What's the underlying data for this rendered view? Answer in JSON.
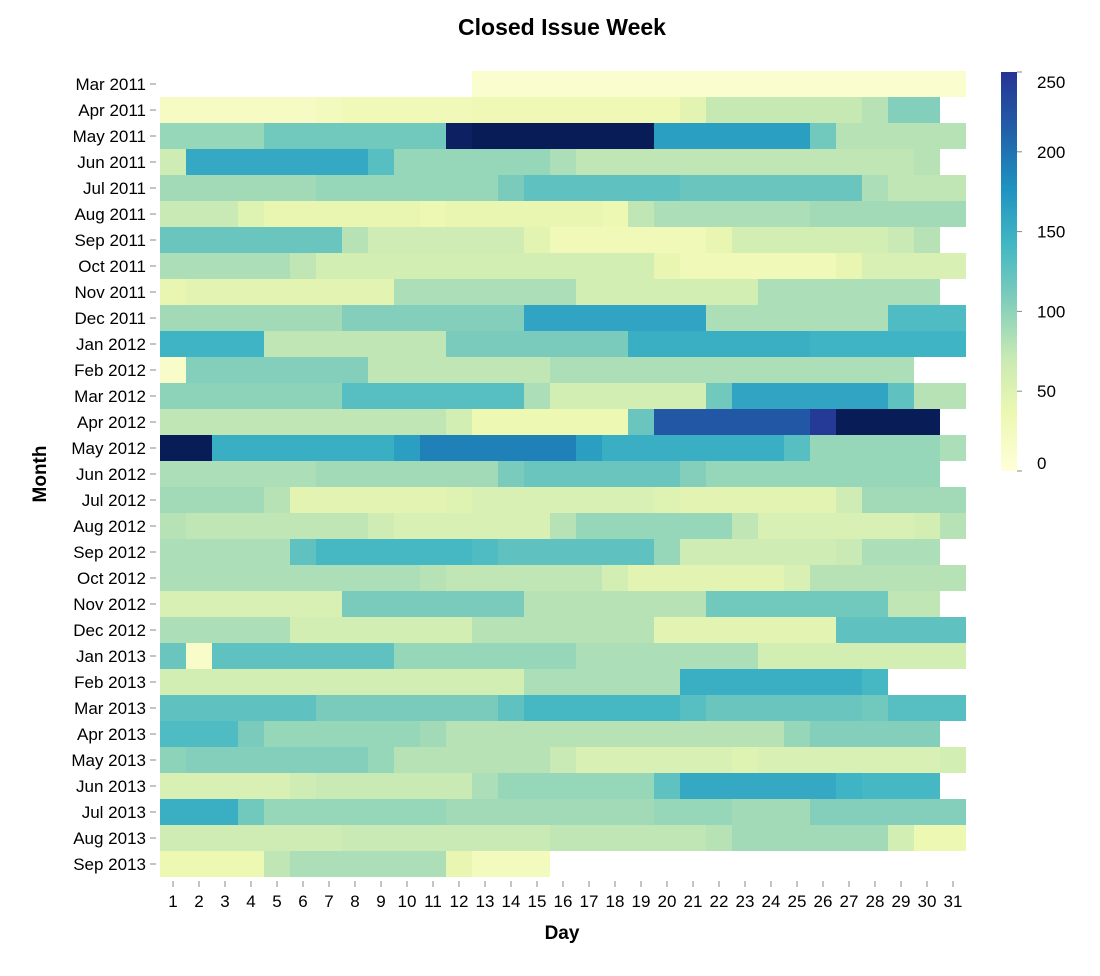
{
  "chart_data": {
    "type": "heatmap",
    "title": "Closed Issue Week",
    "xlabel": "Day",
    "ylabel": "Month",
    "x_categories": [
      "1",
      "2",
      "3",
      "4",
      "5",
      "6",
      "7",
      "8",
      "9",
      "10",
      "11",
      "12",
      "13",
      "14",
      "15",
      "16",
      "17",
      "18",
      "19",
      "20",
      "21",
      "22",
      "23",
      "24",
      "25",
      "26",
      "27",
      "28",
      "29",
      "30",
      "31"
    ],
    "y_categories": [
      "Mar 2011",
      "Apr 2011",
      "May 2011",
      "Jun 2011",
      "Jul 2011",
      "Aug 2011",
      "Sep 2011",
      "Oct 2011",
      "Nov 2011",
      "Dec 2011",
      "Jan 2012",
      "Feb 2012",
      "Mar 2012",
      "Apr 2012",
      "May 2012",
      "Jun 2012",
      "Jul 2012",
      "Aug 2012",
      "Sep 2012",
      "Oct 2012",
      "Nov 2012",
      "Dec 2012",
      "Jan 2013",
      "Feb 2013",
      "Mar 2013",
      "Apr 2013",
      "May 2013",
      "Jun 2013",
      "Jul 2013",
      "Aug 2013",
      "Sep 2013"
    ],
    "color_scale": {
      "domain": [
        0,
        250
      ],
      "legend_ticks": [
        0,
        50,
        100,
        150,
        200,
        250
      ],
      "stops": [
        "#ffffd9",
        "#edf8b1",
        "#c7e9b4",
        "#7fcdbb",
        "#41b6c4",
        "#1d91c0",
        "#225ea8",
        "#253494",
        "#081d58"
      ]
    },
    "values": [
      [
        null,
        null,
        null,
        null,
        null,
        null,
        null,
        null,
        null,
        null,
        null,
        null,
        10,
        10,
        10,
        10,
        10,
        10,
        10,
        10,
        10,
        10,
        10,
        10,
        10,
        10,
        10,
        10,
        10,
        10,
        10
      ],
      [
        20,
        20,
        20,
        20,
        20,
        20,
        25,
        30,
        30,
        30,
        30,
        30,
        32,
        32,
        32,
        32,
        32,
        32,
        32,
        32,
        45,
        72,
        72,
        72,
        72,
        72,
        72,
        80,
        105,
        105,
        null
      ],
      [
        95,
        95,
        95,
        95,
        115,
        115,
        115,
        115,
        115,
        115,
        115,
        280,
        300,
        300,
        300,
        300,
        300,
        300,
        300,
        165,
        165,
        165,
        165,
        165,
        165,
        115,
        80,
        80,
        80,
        80,
        80
      ],
      [
        65,
        155,
        155,
        155,
        155,
        155,
        155,
        155,
        130,
        95,
        95,
        95,
        95,
        95,
        95,
        85,
        75,
        75,
        75,
        75,
        75,
        75,
        75,
        75,
        75,
        75,
        75,
        75,
        75,
        80,
        null
      ],
      [
        90,
        90,
        90,
        90,
        90,
        90,
        95,
        95,
        95,
        95,
        95,
        95,
        95,
        110,
        125,
        125,
        125,
        125,
        125,
        125,
        120,
        120,
        120,
        120,
        120,
        120,
        120,
        85,
        75,
        75,
        75
      ],
      [
        70,
        70,
        70,
        50,
        40,
        40,
        40,
        40,
        40,
        40,
        35,
        40,
        40,
        40,
        40,
        40,
        40,
        35,
        75,
        85,
        85,
        85,
        85,
        85,
        85,
        90,
        90,
        90,
        90,
        90,
        90
      ],
      [
        120,
        120,
        120,
        120,
        120,
        120,
        120,
        80,
        65,
        65,
        65,
        65,
        65,
        65,
        45,
        30,
        30,
        30,
        30,
        30,
        30,
        40,
        60,
        60,
        60,
        60,
        60,
        60,
        70,
        80,
        null
      ],
      [
        85,
        85,
        85,
        85,
        85,
        75,
        60,
        60,
        60,
        60,
        60,
        60,
        60,
        60,
        60,
        60,
        60,
        60,
        60,
        40,
        30,
        30,
        30,
        30,
        30,
        30,
        40,
        55,
        55,
        55,
        55
      ],
      [
        40,
        45,
        45,
        45,
        45,
        45,
        45,
        45,
        45,
        85,
        85,
        85,
        85,
        85,
        85,
        85,
        60,
        60,
        60,
        60,
        60,
        60,
        60,
        85,
        85,
        85,
        85,
        85,
        85,
        85,
        null
      ],
      [
        90,
        90,
        90,
        90,
        90,
        90,
        90,
        105,
        105,
        105,
        105,
        105,
        105,
        105,
        160,
        160,
        160,
        160,
        160,
        160,
        160,
        85,
        85,
        85,
        85,
        85,
        85,
        85,
        135,
        135,
        135
      ],
      [
        145,
        145,
        145,
        145,
        75,
        75,
        75,
        75,
        75,
        75,
        75,
        110,
        110,
        110,
        110,
        110,
        110,
        110,
        150,
        150,
        150,
        150,
        150,
        150,
        150,
        145,
        145,
        145,
        145,
        145,
        145
      ],
      [
        15,
        105,
        105,
        105,
        105,
        105,
        105,
        105,
        75,
        75,
        75,
        75,
        75,
        75,
        75,
        85,
        85,
        85,
        85,
        85,
        85,
        85,
        85,
        85,
        85,
        85,
        85,
        85,
        85,
        null,
        null
      ],
      [
        100,
        100,
        100,
        100,
        100,
        100,
        100,
        130,
        130,
        130,
        130,
        130,
        130,
        130,
        85,
        60,
        60,
        60,
        60,
        60,
        60,
        115,
        160,
        160,
        160,
        160,
        160,
        160,
        125,
        80,
        80
      ],
      [
        75,
        75,
        75,
        75,
        75,
        75,
        75,
        75,
        75,
        75,
        75,
        60,
        35,
        35,
        35,
        35,
        35,
        35,
        120,
        220,
        220,
        220,
        220,
        220,
        220,
        245,
        300,
        300,
        300,
        300,
        null
      ],
      [
        290,
        290,
        150,
        150,
        150,
        150,
        150,
        150,
        150,
        165,
        190,
        190,
        190,
        190,
        190,
        190,
        165,
        150,
        150,
        150,
        150,
        150,
        150,
        150,
        130,
        95,
        95,
        95,
        95,
        95,
        85
      ],
      [
        85,
        85,
        85,
        85,
        85,
        85,
        90,
        90,
        90,
        90,
        90,
        90,
        90,
        110,
        120,
        120,
        120,
        120,
        120,
        120,
        105,
        95,
        95,
        95,
        95,
        95,
        95,
        95,
        95,
        95,
        null
      ],
      [
        90,
        90,
        90,
        90,
        80,
        45,
        45,
        45,
        45,
        45,
        45,
        50,
        55,
        55,
        55,
        55,
        55,
        55,
        55,
        50,
        45,
        45,
        45,
        45,
        45,
        45,
        65,
        90,
        90,
        90,
        90
      ],
      [
        80,
        75,
        75,
        75,
        75,
        75,
        75,
        75,
        65,
        55,
        55,
        55,
        55,
        55,
        55,
        80,
        95,
        95,
        95,
        95,
        95,
        95,
        75,
        55,
        55,
        55,
        55,
        55,
        55,
        60,
        80
      ],
      [
        85,
        85,
        85,
        85,
        85,
        125,
        140,
        140,
        140,
        140,
        140,
        140,
        135,
        125,
        125,
        125,
        125,
        125,
        125,
        95,
        65,
        65,
        65,
        65,
        65,
        65,
        70,
        85,
        85,
        85,
        null
      ],
      [
        85,
        85,
        85,
        85,
        85,
        85,
        85,
        85,
        85,
        85,
        80,
        75,
        75,
        75,
        75,
        75,
        75,
        60,
        45,
        45,
        45,
        45,
        45,
        45,
        55,
        80,
        80,
        80,
        80,
        80,
        80
      ],
      [
        55,
        55,
        55,
        55,
        55,
        55,
        55,
        110,
        110,
        110,
        110,
        110,
        110,
        110,
        80,
        80,
        80,
        80,
        80,
        80,
        80,
        115,
        115,
        115,
        115,
        115,
        115,
        115,
        75,
        75,
        null
      ],
      [
        85,
        85,
        85,
        85,
        85,
        60,
        60,
        60,
        60,
        60,
        60,
        60,
        80,
        80,
        80,
        80,
        80,
        80,
        80,
        45,
        45,
        45,
        45,
        45,
        45,
        45,
        125,
        125,
        125,
        125,
        125
      ],
      [
        120,
        15,
        125,
        125,
        125,
        125,
        125,
        125,
        125,
        95,
        95,
        95,
        95,
        95,
        95,
        95,
        85,
        85,
        85,
        85,
        85,
        85,
        85,
        60,
        60,
        60,
        60,
        60,
        60,
        60,
        60
      ],
      [
        60,
        60,
        60,
        60,
        60,
        60,
        60,
        60,
        60,
        60,
        60,
        60,
        60,
        60,
        85,
        85,
        85,
        85,
        85,
        85,
        150,
        150,
        150,
        150,
        150,
        150,
        150,
        140,
        null,
        null,
        null
      ],
      [
        125,
        125,
        125,
        125,
        125,
        125,
        110,
        110,
        110,
        110,
        110,
        110,
        110,
        125,
        140,
        140,
        140,
        140,
        140,
        140,
        130,
        120,
        120,
        120,
        120,
        120,
        120,
        115,
        130,
        130,
        130
      ],
      [
        135,
        135,
        135,
        110,
        95,
        95,
        95,
        95,
        95,
        95,
        90,
        80,
        80,
        80,
        80,
        80,
        80,
        80,
        80,
        80,
        80,
        80,
        80,
        80,
        95,
        105,
        105,
        105,
        105,
        105,
        null
      ],
      [
        100,
        105,
        105,
        105,
        105,
        105,
        105,
        105,
        95,
        80,
        80,
        80,
        80,
        80,
        80,
        70,
        55,
        55,
        55,
        55,
        55,
        55,
        50,
        55,
        55,
        55,
        55,
        55,
        55,
        55,
        60
      ],
      [
        55,
        55,
        55,
        55,
        55,
        65,
        70,
        70,
        70,
        70,
        70,
        70,
        85,
        95,
        95,
        95,
        95,
        95,
        95,
        125,
        155,
        155,
        155,
        155,
        155,
        155,
        145,
        140,
        140,
        140,
        null
      ],
      [
        150,
        150,
        150,
        115,
        95,
        95,
        95,
        95,
        95,
        95,
        95,
        90,
        90,
        90,
        90,
        90,
        90,
        90,
        90,
        95,
        95,
        95,
        90,
        90,
        90,
        105,
        105,
        105,
        105,
        105,
        105
      ],
      [
        65,
        65,
        65,
        65,
        65,
        65,
        65,
        70,
        70,
        70,
        70,
        70,
        70,
        70,
        70,
        75,
        75,
        75,
        75,
        75,
        75,
        80,
        90,
        90,
        90,
        90,
        90,
        90,
        60,
        35,
        35
      ],
      [
        35,
        35,
        35,
        35,
        75,
        85,
        85,
        85,
        85,
        85,
        85,
        40,
        25,
        25,
        25,
        null,
        null,
        null,
        null,
        null,
        null,
        null,
        null,
        null,
        null,
        null,
        null,
        null,
        null,
        null,
        null
      ]
    ]
  }
}
